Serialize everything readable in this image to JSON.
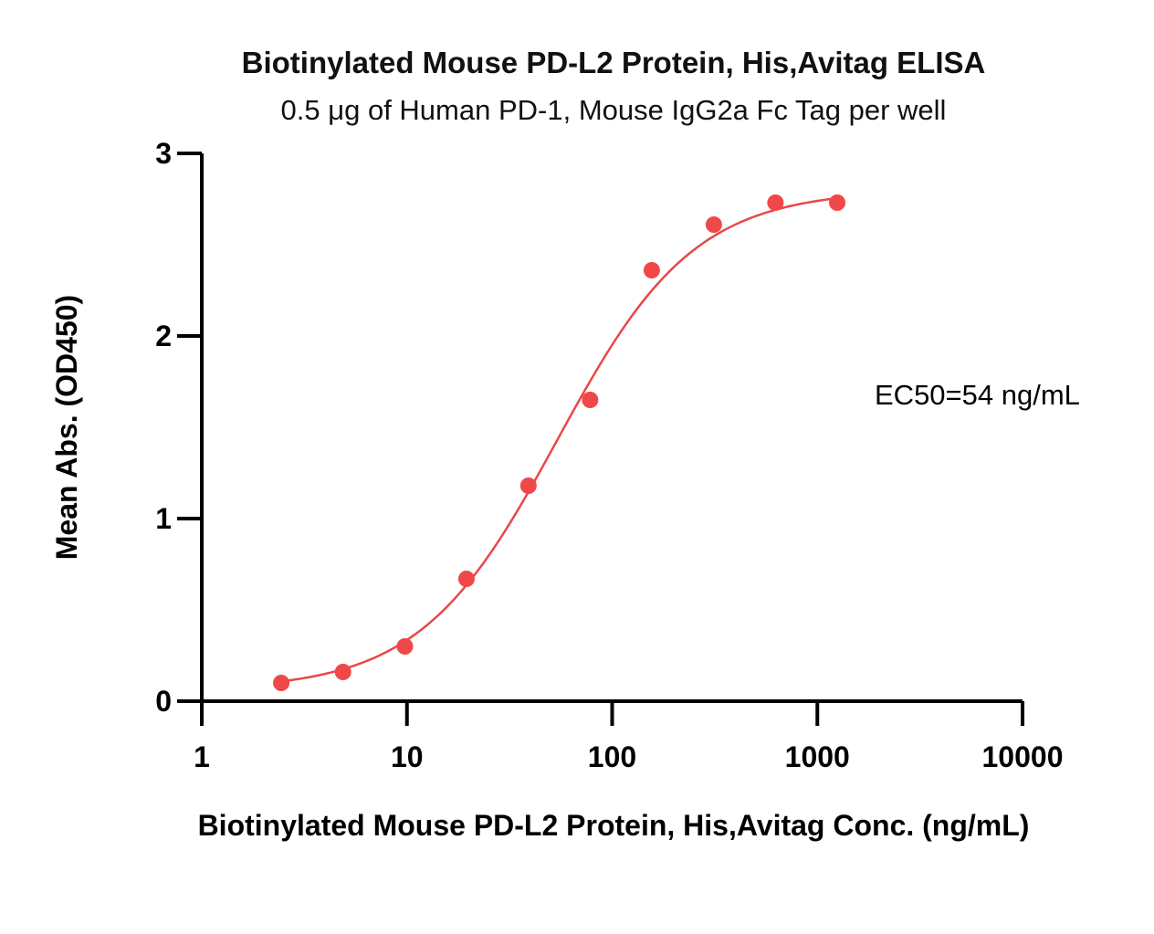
{
  "chart_data": {
    "type": "scatter",
    "title": "Biotinylated Mouse PD-L2 Protein, His,Avitag ELISA",
    "subtitle": "0.5 μg of Human PD-1, Mouse IgG2a Fc Tag per well",
    "xlabel": "Biotinylated Mouse PD-L2 Protein, His,Avitag Conc. (ng/mL)",
    "ylabel": "Mean Abs. (OD450)",
    "x_scale": "log",
    "xlim": [
      1,
      10000
    ],
    "ylim": [
      0,
      3
    ],
    "x_ticks": [
      1,
      10,
      100,
      1000,
      10000
    ],
    "x_tick_labels": [
      "1",
      "10",
      "100",
      "1000",
      "10000"
    ],
    "y_ticks": [
      0,
      1,
      2,
      3
    ],
    "y_tick_labels": [
      "0",
      "1",
      "2",
      "3"
    ],
    "grid": false,
    "series": [
      {
        "color": "#f04848",
        "x": [
          2.44,
          4.88,
          9.77,
          19.5,
          39.1,
          78.1,
          156,
          313,
          625,
          1250
        ],
        "y": [
          0.1,
          0.16,
          0.3,
          0.67,
          1.18,
          1.65,
          2.36,
          2.61,
          2.73,
          2.73
        ]
      }
    ],
    "fit_curve": {
      "color": "#e84848",
      "bottom": 0.06,
      "top": 2.8,
      "ec50": 54,
      "hill": 1.3
    },
    "annotations": [
      "EC50=54 ng/mL"
    ]
  }
}
